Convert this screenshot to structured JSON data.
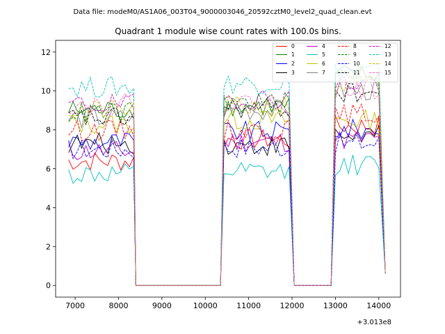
{
  "chart_data": {
    "type": "line",
    "suptitle": "Data file: modeM0/AS1A06_003T04_9000003046_20592cztM0_level2_quad_clean.evt",
    "title": "Quadrant 1 module wise count rates with 100.0s bins.",
    "xlabel": "",
    "ylabel": "",
    "x_offset_label": "+3.013e8",
    "xlim": [
      6550,
      14500
    ],
    "ylim": [
      -0.6,
      12.6
    ],
    "x_ticks": [
      7000,
      8000,
      9000,
      10000,
      11000,
      12000,
      13000,
      14000
    ],
    "x_tick_labels": [
      "7000",
      "8000",
      "9000",
      "10000",
      "11000",
      "12000",
      "13000",
      "14000"
    ],
    "y_ticks": [
      0,
      2,
      4,
      6,
      8,
      10,
      12
    ],
    "y_tick_labels": [
      "0",
      "2",
      "4",
      "6",
      "8",
      "10",
      "12"
    ],
    "grid": false,
    "legend_position": "top-right",
    "legend_columns": 4,
    "segments": [
      {
        "start": 6850,
        "end": 8350,
        "fall_to": 8400
      },
      {
        "start": 10430,
        "end": 11950,
        "rise_from": 10350,
        "fall_to": 12050
      },
      {
        "start": 13000,
        "end": 14050,
        "rise_from": 12900,
        "fall_to": 14150
      }
    ],
    "zero_range": [
      8400,
      10350
    ],
    "series": [
      {
        "name": "0",
        "color": "#ff0000",
        "dash": "solid",
        "levels": [
          6.4,
          7.5,
          8.2
        ]
      },
      {
        "name": "1",
        "color": "#008000",
        "dash": "solid",
        "levels": [
          9.0,
          9.2,
          10.8
        ]
      },
      {
        "name": "2",
        "color": "#0000ff",
        "dash": "solid",
        "levels": [
          7.4,
          7.9,
          8.0
        ]
      },
      {
        "name": "3",
        "color": "#000000",
        "dash": "solid",
        "levels": [
          7.3,
          7.2,
          7.7
        ]
      },
      {
        "name": "4",
        "color": "#c000c0",
        "dash": "solid",
        "levels": [
          6.9,
          7.4,
          7.5
        ]
      },
      {
        "name": "5",
        "color": "#00bfbf",
        "dash": "solid",
        "levels": [
          5.7,
          5.8,
          6.2
        ]
      },
      {
        "name": "6",
        "color": "#bfbf00",
        "dash": "solid",
        "levels": [
          8.3,
          8.5,
          8.5
        ]
      },
      {
        "name": "7",
        "color": "#808080",
        "dash": "solid",
        "levels": [
          8.6,
          9.0,
          10.0
        ]
      },
      {
        "name": "8",
        "color": "#ff0000",
        "dash": "dashed",
        "levels": [
          8.0,
          8.0,
          8.8
        ]
      },
      {
        "name": "9",
        "color": "#008000",
        "dash": "dashed",
        "levels": [
          8.9,
          9.4,
          10.9
        ]
      },
      {
        "name": "10",
        "color": "#0000ff",
        "dash": "dashed",
        "levels": [
          7.0,
          7.1,
          7.3
        ]
      },
      {
        "name": "11",
        "color": "#000000",
        "dash": "dashed",
        "levels": [
          8.6,
          9.1,
          9.9
        ]
      },
      {
        "name": "12",
        "color": "#c000c0",
        "dash": "dashed",
        "levels": [
          9.3,
          9.6,
          10.4
        ]
      },
      {
        "name": "13",
        "color": "#00bfbf",
        "dash": "dashed",
        "levels": [
          10.2,
          10.4,
          11.0
        ]
      },
      {
        "name": "14",
        "color": "#bfbf00",
        "dash": "dashed",
        "levels": [
          9.0,
          9.2,
          10.3
        ]
      },
      {
        "name": "15",
        "color": "#ff69b4",
        "dash": "dashed",
        "levels": [
          9.3,
          9.4,
          10.1
        ]
      }
    ]
  }
}
